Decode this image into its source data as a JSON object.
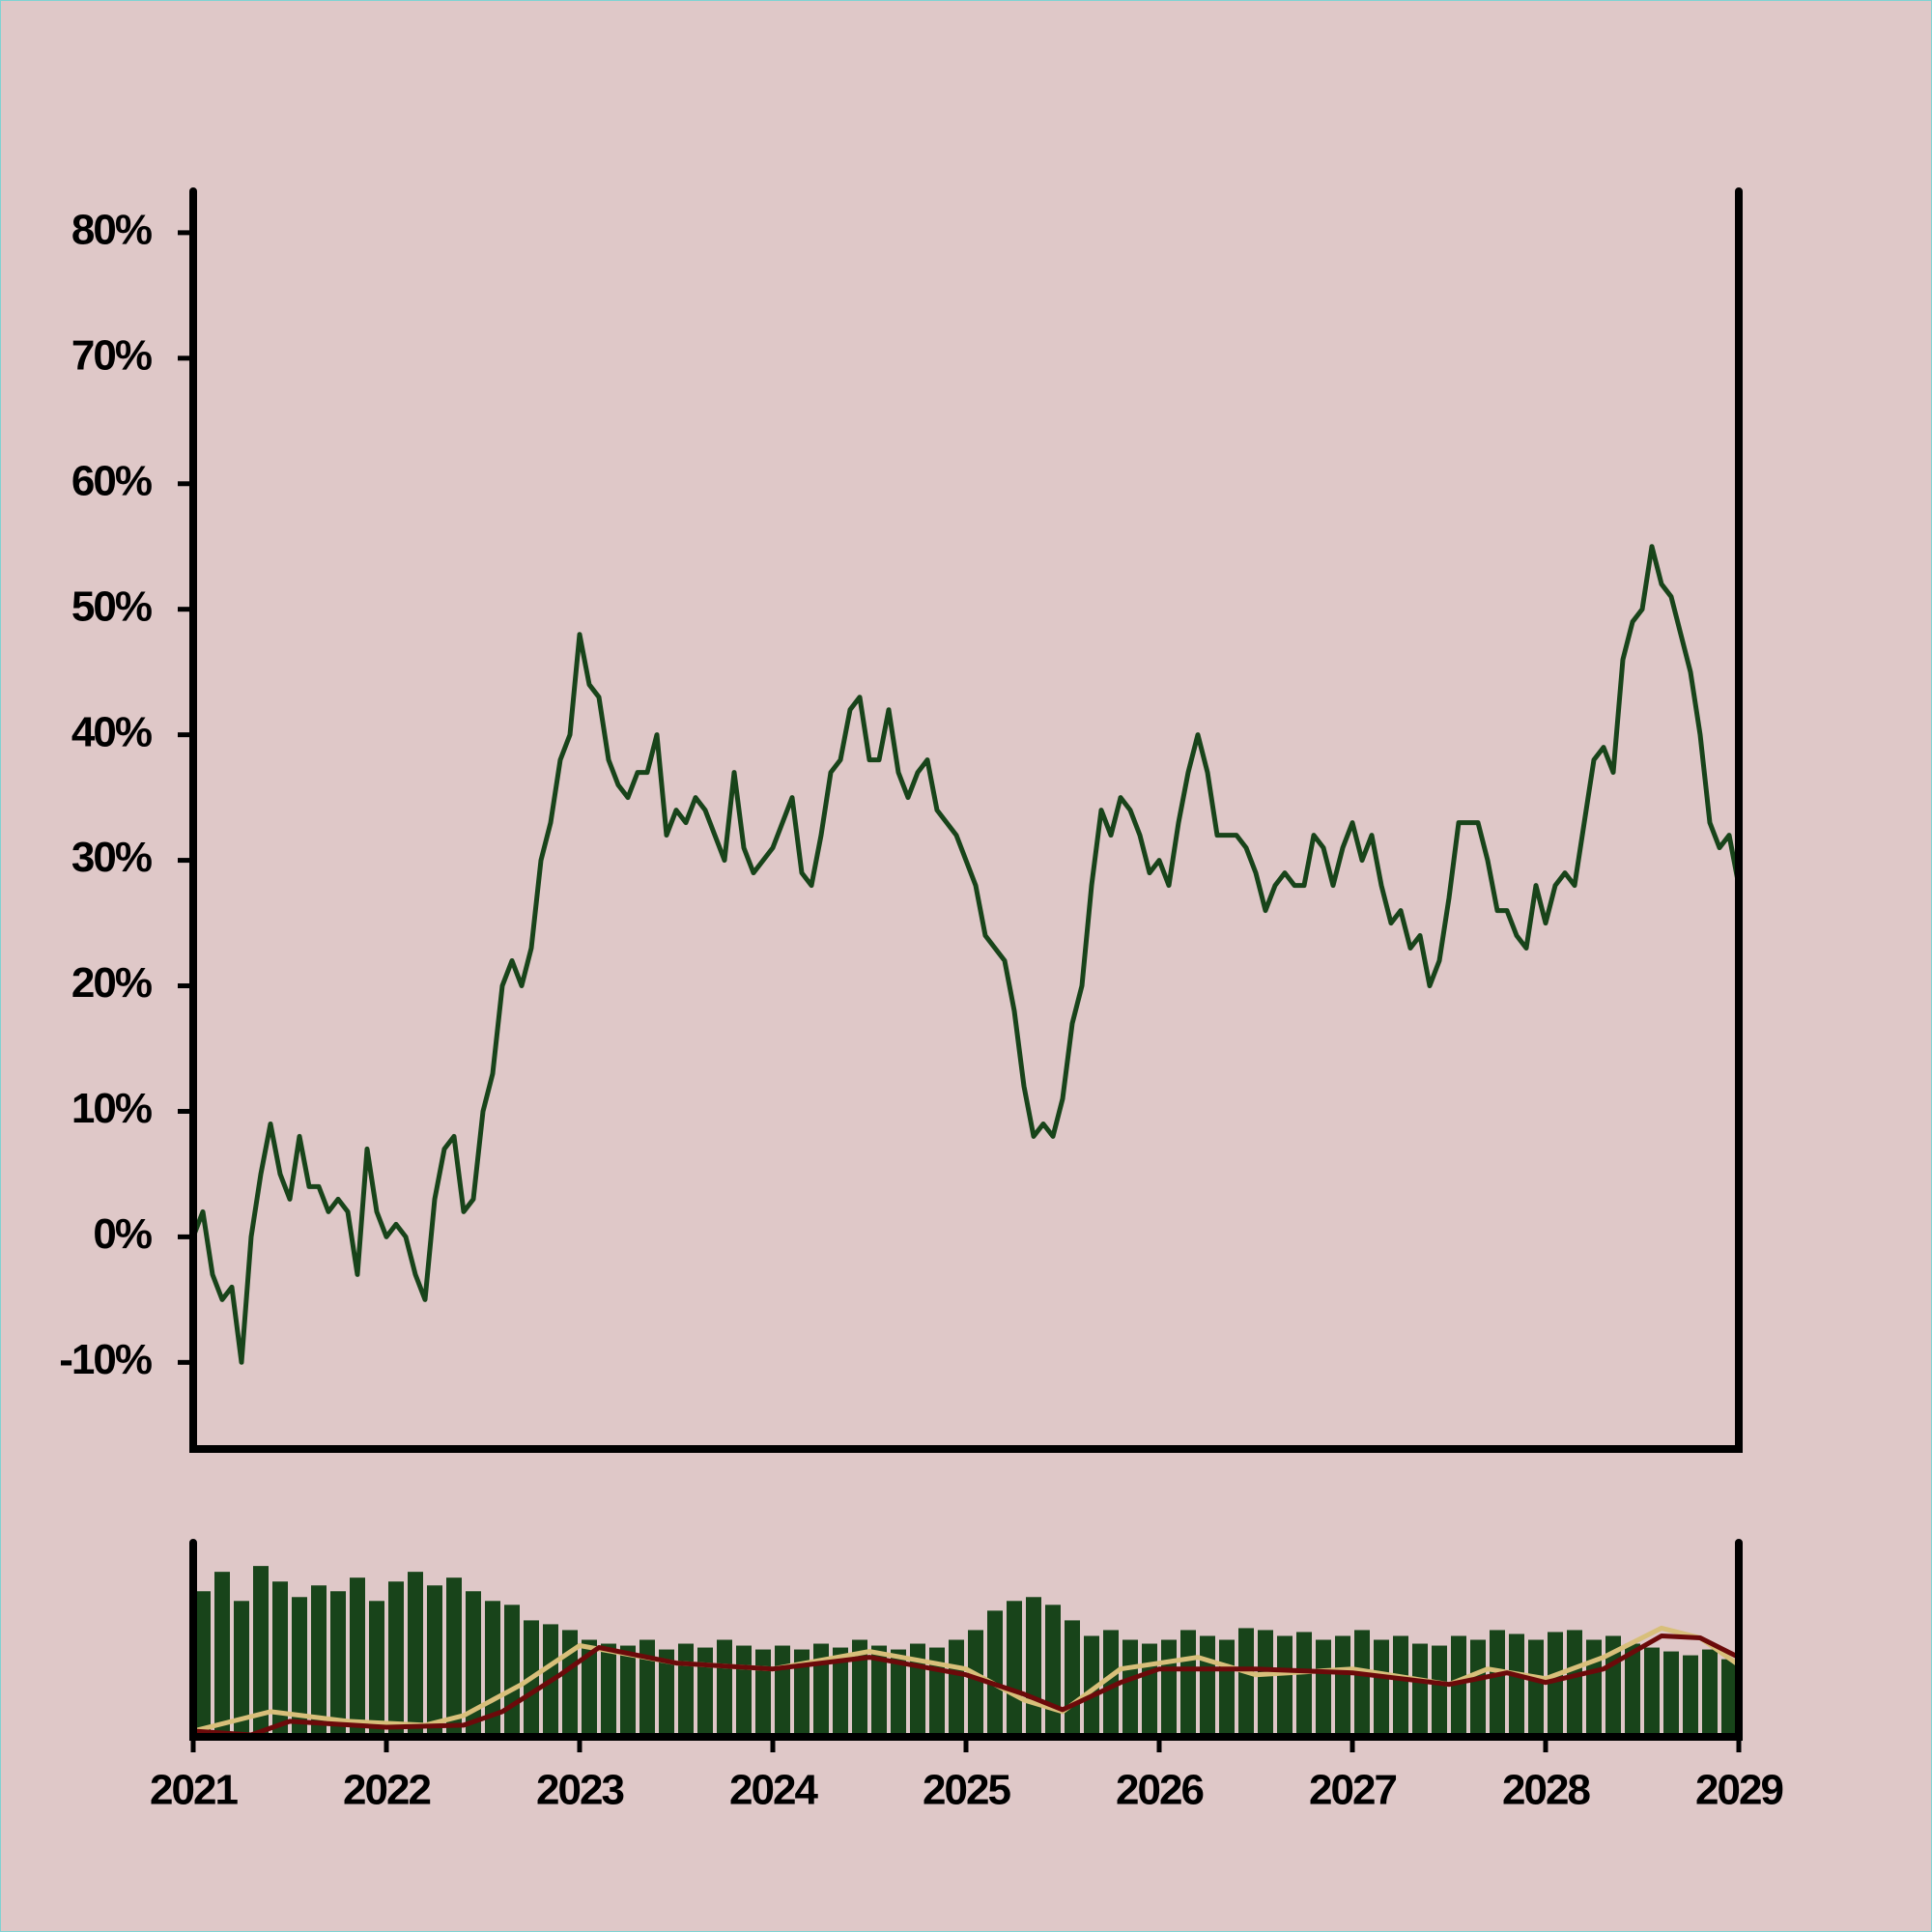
{
  "chart_data": [
    {
      "type": "line",
      "color": "#18441a",
      "x": [
        2021,
        2021.05,
        2021.1,
        2021.15,
        2021.2,
        2021.25,
        2021.3,
        2021.35,
        2021.4,
        2021.45,
        2021.5,
        2021.55,
        2021.6,
        2021.65,
        2021.7,
        2021.75,
        2021.8,
        2021.85,
        2021.9,
        2021.95,
        2022,
        2022.05,
        2022.1,
        2022.15,
        2022.2,
        2022.25,
        2022.3,
        2022.35,
        2022.4,
        2022.45,
        2022.5,
        2022.55,
        2022.6,
        2022.65,
        2022.7,
        2022.75,
        2022.8,
        2022.85,
        2022.9,
        2022.95,
        2023,
        2023.05,
        2023.1,
        2023.15,
        2023.2,
        2023.25,
        2023.3,
        2023.35,
        2023.4,
        2023.45,
        2023.5,
        2023.55,
        2023.6,
        2023.65,
        2023.7,
        2023.75,
        2023.8,
        2023.85,
        2023.9,
        2023.95,
        2024,
        2024.05,
        2024.1,
        2024.15,
        2024.2,
        2024.25,
        2024.3,
        2024.35,
        2024.4,
        2024.45,
        2024.5,
        2024.55,
        2024.6,
        2024.65,
        2024.7,
        2024.75,
        2024.8,
        2024.85,
        2024.9,
        2024.95,
        2025,
        2025.05,
        2025.1,
        2025.15,
        2025.2,
        2025.25,
        2025.3,
        2025.35,
        2025.4,
        2025.45,
        2025.5,
        2025.55,
        2025.6,
        2025.65,
        2025.7,
        2025.75,
        2025.8,
        2025.85,
        2025.9,
        2025.95,
        2026,
        2026.05,
        2026.1,
        2026.15,
        2026.2,
        2026.25,
        2026.3,
        2026.35,
        2026.4,
        2026.45,
        2026.5,
        2026.55,
        2026.6,
        2026.65,
        2026.7,
        2026.75,
        2026.8,
        2026.85,
        2026.9,
        2026.95,
        2027,
        2027.05,
        2027.1,
        2027.15,
        2027.2,
        2027.25,
        2027.3,
        2027.35,
        2027.4,
        2027.45,
        2027.5,
        2027.55,
        2027.6,
        2027.65,
        2027.7,
        2027.75,
        2027.8,
        2027.85,
        2027.9,
        2027.95,
        2028,
        2028.05,
        2028.1,
        2028.15,
        2028.2,
        2028.25,
        2028.3,
        2028.35,
        2028.4,
        2028.45,
        2028.5,
        2028.55,
        2028.6,
        2028.65,
        2028.7,
        2028.75,
        2028.8,
        2028.85,
        2028.9,
        2028.95,
        2029
      ],
      "values": [
        0,
        2,
        -3,
        -5,
        -4,
        -10,
        0,
        5,
        9,
        5,
        3,
        8,
        4,
        4,
        2,
        3,
        2,
        -3,
        7,
        2,
        0,
        1,
        0,
        -3,
        -5,
        3,
        7,
        8,
        2,
        3,
        10,
        13,
        20,
        22,
        20,
        23,
        30,
        33,
        38,
        40,
        48,
        44,
        43,
        38,
        36,
        35,
        37,
        37,
        40,
        32,
        34,
        33,
        35,
        34,
        32,
        30,
        37,
        31,
        29,
        30,
        31,
        33,
        35,
        29,
        28,
        32,
        37,
        38,
        42,
        43,
        38,
        38,
        42,
        37,
        35,
        37,
        38,
        34,
        33,
        32,
        30,
        28,
        24,
        23,
        22,
        18,
        12,
        8,
        9,
        8,
        11,
        17,
        20,
        28,
        34,
        32,
        35,
        34,
        32,
        29,
        30,
        28,
        33,
        37,
        40,
        37,
        32,
        32,
        32,
        31,
        29,
        26,
        28,
        29,
        28,
        28,
        32,
        31,
        28,
        31,
        33,
        30,
        32,
        28,
        25,
        26,
        23,
        24,
        20,
        22,
        27,
        33,
        33,
        33,
        30,
        26,
        26,
        24,
        23,
        28,
        25,
        28,
        29,
        28,
        33,
        38,
        39,
        37,
        46,
        49,
        50,
        55,
        52,
        51,
        48,
        45,
        40,
        33,
        31,
        32,
        28
      ],
      "xlim": [
        2021,
        2029
      ],
      "ylim": [
        -16.9,
        83.3
      ],
      "yticks": [
        {
          "value": -10,
          "label": "-10%"
        },
        {
          "value": 0,
          "label": "0%"
        },
        {
          "value": 10,
          "label": "10%"
        },
        {
          "value": 20,
          "label": "20%"
        },
        {
          "value": 30,
          "label": "30%"
        },
        {
          "value": 40,
          "label": "40%"
        },
        {
          "value": 50,
          "label": "50%"
        },
        {
          "value": 60,
          "label": "60%"
        },
        {
          "value": 70,
          "label": "70%"
        },
        {
          "value": 80,
          "label": "80%"
        }
      ]
    },
    {
      "type": "bar",
      "color": "#18441a",
      "x": [
        2021.05,
        2021.15,
        2021.25,
        2021.35,
        2021.45,
        2021.55,
        2021.65,
        2021.75,
        2021.85,
        2021.95,
        2022.05,
        2022.15,
        2022.25,
        2022.35,
        2022.45,
        2022.55,
        2022.65,
        2022.75,
        2022.85,
        2022.95,
        2023.05,
        2023.15,
        2023.25,
        2023.35,
        2023.45,
        2023.55,
        2023.65,
        2023.75,
        2023.85,
        2023.95,
        2024.05,
        2024.15,
        2024.25,
        2024.35,
        2024.45,
        2024.55,
        2024.65,
        2024.75,
        2024.85,
        2024.95,
        2025.05,
        2025.15,
        2025.25,
        2025.35,
        2025.45,
        2025.55,
        2025.65,
        2025.75,
        2025.85,
        2025.95,
        2026.05,
        2026.15,
        2026.25,
        2026.35,
        2026.45,
        2026.55,
        2026.65,
        2026.75,
        2026.85,
        2026.95,
        2027.05,
        2027.15,
        2027.25,
        2027.35,
        2027.45,
        2027.55,
        2027.65,
        2027.75,
        2027.85,
        2027.95,
        2028.05,
        2028.15,
        2028.25,
        2028.35,
        2028.45,
        2028.55,
        2028.65,
        2028.75,
        2028.85,
        2028.95
      ],
      "values": [
        75,
        85,
        70,
        88,
        80,
        72,
        78,
        75,
        82,
        70,
        80,
        85,
        78,
        82,
        75,
        70,
        68,
        60,
        58,
        55,
        50,
        48,
        47,
        50,
        45,
        48,
        46,
        50,
        47,
        45,
        47,
        45,
        48,
        46,
        50,
        47,
        45,
        48,
        46,
        50,
        55,
        65,
        70,
        72,
        68,
        60,
        52,
        55,
        50,
        48,
        50,
        55,
        52,
        50,
        56,
        55,
        52,
        54,
        50,
        52,
        55,
        50,
        52,
        48,
        47,
        52,
        50,
        55,
        53,
        50,
        54,
        55,
        50,
        52,
        48,
        46,
        44,
        42,
        45,
        40
      ],
      "overlays": [
        {
          "color": "#d8bf7a",
          "x": [
            2021,
            2021.4,
            2021.8,
            2022.2,
            2022.4,
            2022.7,
            2023,
            2023.5,
            2024,
            2024.5,
            2025,
            2025.3,
            2025.5,
            2025.8,
            2026.2,
            2026.5,
            2027,
            2027.5,
            2027.7,
            2028,
            2028.3,
            2028.6,
            2028.8,
            2029
          ],
          "values": [
            3,
            13,
            8,
            6,
            11,
            27,
            47,
            38,
            35,
            44,
            35,
            19,
            13,
            35,
            41,
            32,
            35,
            27,
            35,
            30,
            41,
            56,
            51,
            37
          ]
        },
        {
          "color": "#6b0a0a",
          "x": [
            2021,
            2021.3,
            2021.5,
            2022,
            2022.4,
            2022.6,
            2022.9,
            2023.1,
            2023.5,
            2024,
            2024.5,
            2025,
            2025.3,
            2025.5,
            2025.8,
            2026,
            2026.5,
            2027,
            2027.5,
            2027.8,
            2028,
            2028.3,
            2028.6,
            2028.8,
            2029
          ],
          "values": [
            3,
            1,
            8,
            5,
            6,
            13,
            32,
            46,
            38,
            35,
            41,
            32,
            22,
            14,
            28,
            35,
            35,
            33,
            27,
            33,
            28,
            35,
            52,
            51,
            41
          ]
        }
      ],
      "xlim": [
        2021,
        2029
      ],
      "ylim": [
        0,
        100
      ],
      "xticks": [
        2021,
        2022,
        2023,
        2024,
        2025,
        2026,
        2027,
        2028,
        2029
      ]
    }
  ]
}
